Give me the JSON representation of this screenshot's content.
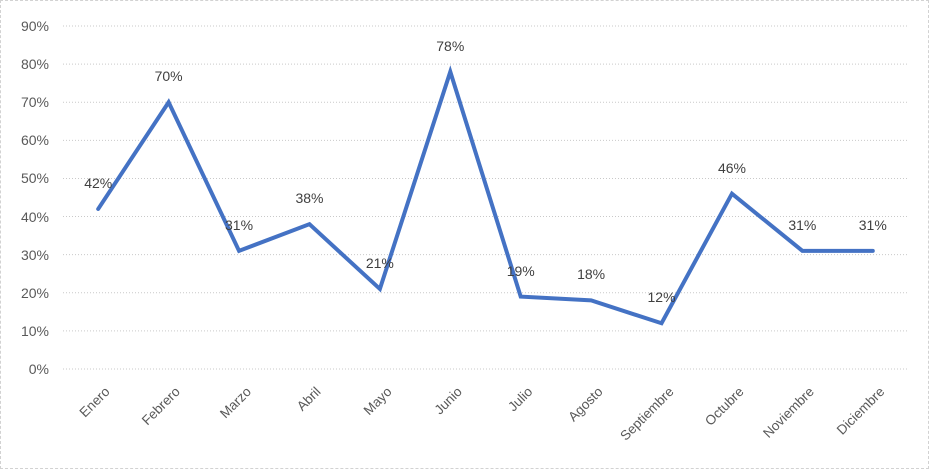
{
  "chart_data": {
    "type": "line",
    "categories": [
      "Enero",
      "Febrero",
      "Marzo",
      "Abril",
      "Mayo",
      "Junio",
      "Julio",
      "Agosto",
      "Septiembre",
      "Octubre",
      "Noviembre",
      "Diciembre"
    ],
    "values": [
      42,
      70,
      31,
      38,
      21,
      78,
      19,
      18,
      12,
      46,
      31,
      31
    ],
    "data_labels": [
      "42%",
      "70%",
      "31%",
      "38%",
      "21%",
      "78%",
      "19%",
      "18%",
      "12%",
      "46%",
      "31%",
      "31%"
    ],
    "title": "",
    "xlabel": "",
    "ylabel": "",
    "ylim": [
      0,
      90
    ],
    "ytick_step": 10,
    "yticks": [
      "0%",
      "10%",
      "20%",
      "30%",
      "40%",
      "50%",
      "60%",
      "70%",
      "80%",
      "90%"
    ],
    "grid": true,
    "legend_position": "none",
    "colors": {
      "line": "#4472C4",
      "gridline": "#c9c9c9",
      "tick_label": "#595959",
      "data_label": "#404040",
      "frame_border": "#d2d2d2",
      "background": "#ffffff"
    }
  }
}
